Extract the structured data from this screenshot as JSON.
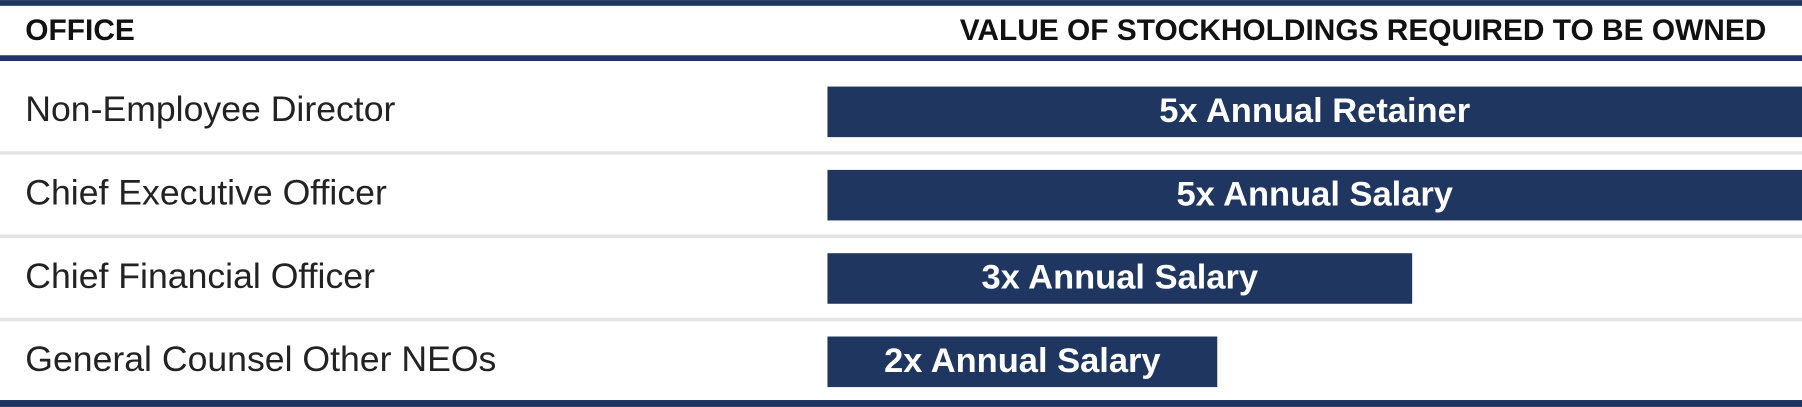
{
  "chart_data": {
    "type": "bar",
    "orientation": "horizontal",
    "category_header": "OFFICE",
    "value_header": "VALUE OF STOCKHOLDINGS REQUIRED TO BE OWNED",
    "categories": [
      "Non-Employee Director",
      "Chief Executive Officer",
      "Chief Financial Officer",
      "General Counsel Other NEOs"
    ],
    "values": [
      5,
      5,
      3,
      2
    ],
    "value_labels": [
      "5x Annual Retainer",
      "5x Annual Salary",
      "3x Annual Salary",
      "2x Annual Salary"
    ],
    "color": "#1f3660"
  }
}
